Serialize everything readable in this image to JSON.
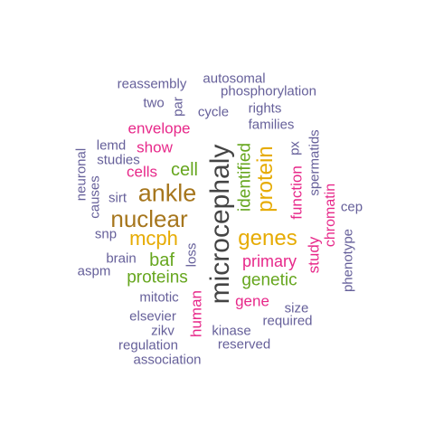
{
  "colors": {
    "grey": "#444444",
    "gold": "#a6761d",
    "olive": "#e6ab02",
    "green": "#66a61e",
    "magenta": "#e7298a",
    "purple": "#7570b3",
    "slate": "#66609a"
  },
  "words": [
    {
      "text": "microcephaly",
      "color": "grey"
    },
    {
      "text": "ankle",
      "color": "gold"
    },
    {
      "text": "nuclear",
      "color": "gold"
    },
    {
      "text": "genes",
      "color": "olive"
    },
    {
      "text": "mcph",
      "color": "olive"
    },
    {
      "text": "protein",
      "color": "olive"
    },
    {
      "text": "cell",
      "color": "green"
    },
    {
      "text": "baf",
      "color": "green"
    },
    {
      "text": "genetic",
      "color": "green"
    },
    {
      "text": "proteins",
      "color": "green"
    },
    {
      "text": "identified",
      "color": "green"
    },
    {
      "text": "primary",
      "color": "magenta"
    },
    {
      "text": "envelope",
      "color": "magenta"
    },
    {
      "text": "show",
      "color": "magenta"
    },
    {
      "text": "cells",
      "color": "magenta"
    },
    {
      "text": "gene",
      "color": "magenta"
    },
    {
      "text": "human",
      "color": "magenta"
    },
    {
      "text": "function",
      "color": "magenta"
    },
    {
      "text": "study",
      "color": "magenta"
    },
    {
      "text": "chromatin",
      "color": "magenta"
    },
    {
      "text": "reassembly",
      "color": "slate"
    },
    {
      "text": "autosomal",
      "color": "slate"
    },
    {
      "text": "phosphorylation",
      "color": "slate"
    },
    {
      "text": "two",
      "color": "slate"
    },
    {
      "text": "par",
      "color": "slate"
    },
    {
      "text": "cycle",
      "color": "slate"
    },
    {
      "text": "rights",
      "color": "slate"
    },
    {
      "text": "families",
      "color": "slate"
    },
    {
      "text": "lemd",
      "color": "slate"
    },
    {
      "text": "studies",
      "color": "slate"
    },
    {
      "text": "neuronal",
      "color": "slate"
    },
    {
      "text": "causes",
      "color": "slate"
    },
    {
      "text": "sirt",
      "color": "slate"
    },
    {
      "text": "snp",
      "color": "slate"
    },
    {
      "text": "brain",
      "color": "slate"
    },
    {
      "text": "aspm",
      "color": "slate"
    },
    {
      "text": "loss",
      "color": "slate"
    },
    {
      "text": "mitotic",
      "color": "slate"
    },
    {
      "text": "elsevier",
      "color": "slate"
    },
    {
      "text": "zikv",
      "color": "slate"
    },
    {
      "text": "regulation",
      "color": "slate"
    },
    {
      "text": "association",
      "color": "slate"
    },
    {
      "text": "kinase",
      "color": "slate"
    },
    {
      "text": "reserved",
      "color": "slate"
    },
    {
      "text": "required",
      "color": "slate"
    },
    {
      "text": "size",
      "color": "slate"
    },
    {
      "text": "px",
      "color": "slate"
    },
    {
      "text": "spermatids",
      "color": "slate"
    },
    {
      "text": "cep",
      "color": "slate"
    },
    {
      "text": "phenotype",
      "color": "slate"
    }
  ]
}
